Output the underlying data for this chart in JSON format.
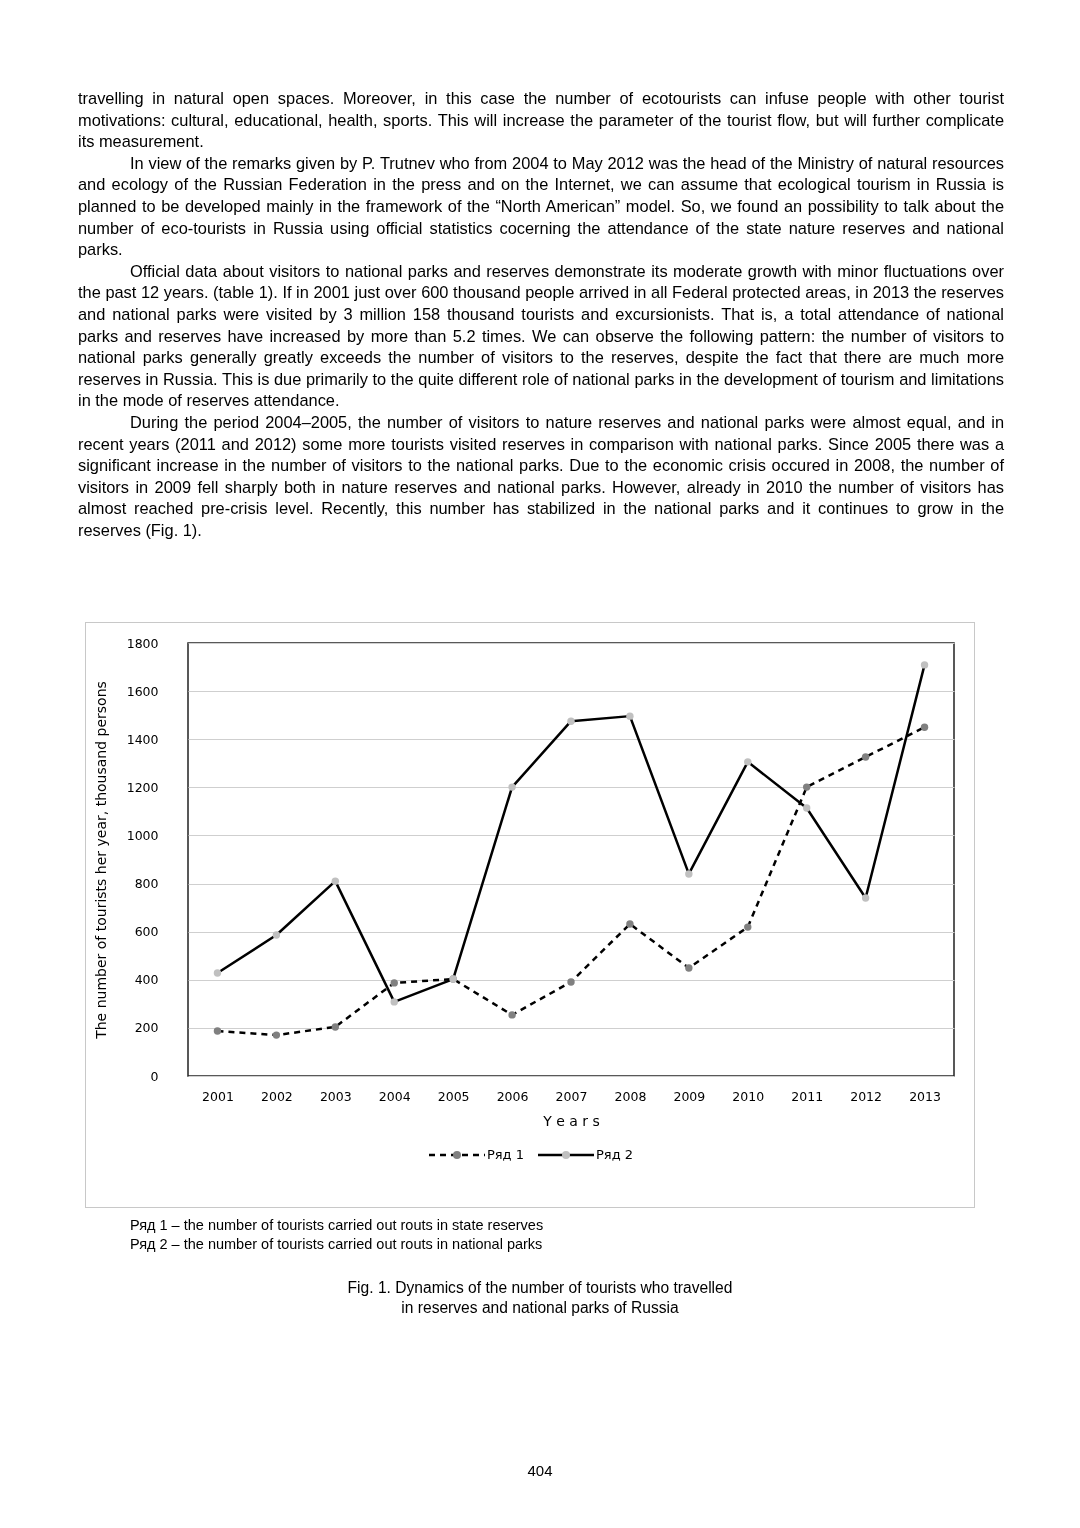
{
  "chart_data": {
    "type": "line",
    "title": "Fig. 1. Dynamics of the number of tourists who travelled\nin reserves and national parks of Russia",
    "xlabel": "Y e a r s",
    "ylabel": "The number of tourists her year, thousand persons",
    "categories": [
      "2001",
      "2002",
      "2003",
      "2004",
      "2005",
      "2006",
      "2007",
      "2008",
      "2009",
      "2010",
      "2011",
      "2012",
      "2013"
    ],
    "series": [
      {
        "name": "Ряд 1",
        "color": "#808080",
        "line_style": "dashed",
        "values": [
          187,
          170,
          204,
          387,
          403,
          254,
          391,
          632,
          449,
          619,
          1201,
          1326,
          1450
        ]
      },
      {
        "name": "Ряд 2",
        "color": "#c0c0c0",
        "line_style": "solid",
        "values": [
          428,
          586,
          810,
          308,
          403,
          1201,
          1475,
          1496,
          840,
          1306,
          1114,
          740,
          1709
        ]
      }
    ],
    "ylim": [
      0,
      1800
    ],
    "yticks": [
      0,
      200,
      400,
      600,
      800,
      1000,
      1200,
      1400,
      1600,
      1800
    ],
    "grid": "y",
    "legend": "bottom",
    "marker": "circle",
    "annotations": [
      "travelling in natural open spaces. Moreover, in this case the number of ecotourists can infuse people with other tourist motivations: cultural, educational, health, sports. This will increase the parameter of the tourist flow, but will further complicate its measurement.",
      "In view of the remarks given by P. Trutnev who from 2004 to May 2012 was the head of the Ministry of natural resources and ecology of the Russian Federation in the press and on the Internet, we can assume that ecological tourism in Russia is planned to be developed mainly in the framework of the “North American” model. So, we found an possibility to talk about the number of eco-tourists in Russia using official statistics cocerning the attendance of the state nature reserves and national parks.",
      "Official data about visitors to national parks and reserves demonstrate its moderate growth with minor fluctuations over the past 12 years. (table 1). If in 2001 just over 600 thousand people arrived in all Federal protected areas, in 2013 the reserves and national parks were visited by 3 million 158 thousand tourists and excursionists. That is, a total attendance of national parks and reserves have increased by more than 5.2 times. We can observe the following pattern: the number of visitors to national parks generally greatly exceeds the number of visitors to the reserves, despite the fact that there are much more reserves in Russia. This is due primarily to the quite different role of national parks in the development of tourism and limitations in the mode of reserves attendance.",
      "During the period 2004–2005, the number of visitors to nature reserves and national parks were almost equal, and in recent years (2011 and 2012) some more tourists visited reserves in comparison with national parks. Since 2005 there was a significant increase in the number of visitors to the national parks. Due to the economic crisis occured in 2008, the number of visitors in 2009 fell sharply both in nature reserves and national parks. However, already in 2010 the number of visitors has almost reached pre-crisis level. Recently, this number has stabilized in the national parks and it continues to grow in the reserves (Fig. 1).",
      "Ряд 1 – the number of tourists carried out routs in state reserves",
      "Ряд 2 – the number of tourists carried out routs in national parks",
      "404"
    ]
  }
}
